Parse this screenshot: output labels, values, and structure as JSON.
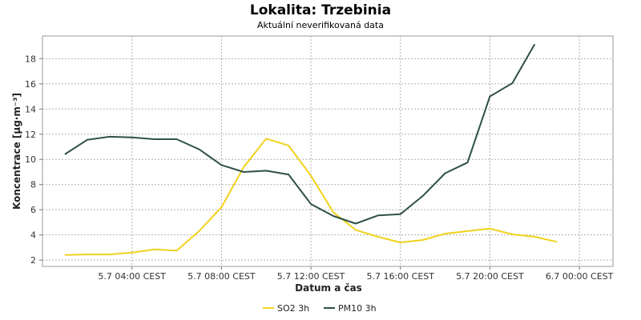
{
  "chart_data": {
    "type": "line",
    "title": "Lokalita: Trzebinia",
    "subtitle": "Aktuální neverifikovaná data",
    "xlabel": "Datum a čas",
    "ylabel": "Koncentrace [µg·m⁻³]",
    "x_ticks": [
      "5.7 04:00 CEST",
      "5.7 08:00 CEST",
      "5.7 12:00 CEST",
      "5.7 16:00 CEST",
      "5.7 20:00 CEST",
      "6.7 00:00 CEST"
    ],
    "y_ticks": [
      2,
      4,
      6,
      8,
      10,
      12,
      14,
      16,
      18
    ],
    "x_range": [
      "5.7 00:00",
      "6.7 01:30"
    ],
    "ylim": [
      1.5,
      19.8
    ],
    "grid": true,
    "legend_position": "bottom-center",
    "series": [
      {
        "name": "SO2 3h",
        "color": "#f0d21e",
        "x": [
          "5.7 01:00",
          "5.7 02:00",
          "5.7 03:00",
          "5.7 04:00",
          "5.7 05:00",
          "5.7 06:00",
          "5.7 07:00",
          "5.7 08:00",
          "5.7 09:00",
          "5.7 10:00",
          "5.7 11:00",
          "5.7 12:00",
          "5.7 13:00",
          "5.7 14:00",
          "5.7 15:00",
          "5.7 16:00",
          "5.7 17:00",
          "5.7 18:00",
          "5.7 19:00",
          "5.7 20:00",
          "5.7 21:00",
          "5.7 22:00",
          "5.7 23:00"
        ],
        "values": [
          2.4,
          2.45,
          2.45,
          2.6,
          2.85,
          2.75,
          4.3,
          6.2,
          9.4,
          11.65,
          11.1,
          8.7,
          5.8,
          4.4,
          3.85,
          3.4,
          3.6,
          4.1,
          4.3,
          4.5,
          4.05,
          3.85,
          3.45
        ]
      },
      {
        "name": "PM10 3h",
        "color": "#2f4f4a",
        "x": [
          "5.7 01:00",
          "5.7 02:00",
          "5.7 03:00",
          "5.7 04:00",
          "5.7 05:00",
          "5.7 06:00",
          "5.7 07:00",
          "5.7 08:00",
          "5.7 09:00",
          "5.7 10:00",
          "5.7 11:00",
          "5.7 12:00",
          "5.7 13:00",
          "5.7 14:00",
          "5.7 15:00",
          "5.7 16:00",
          "5.7 17:00",
          "5.7 18:00",
          "5.7 19:00",
          "5.7 20:00",
          "5.7 21:00",
          "5.7 22:00"
        ],
        "values": [
          10.4,
          11.55,
          11.8,
          11.75,
          11.6,
          11.6,
          10.8,
          9.55,
          9.0,
          9.1,
          8.8,
          6.45,
          5.5,
          4.9,
          5.55,
          5.65,
          7.1,
          8.9,
          9.75,
          15.0,
          16.05,
          19.15
        ]
      }
    ]
  }
}
